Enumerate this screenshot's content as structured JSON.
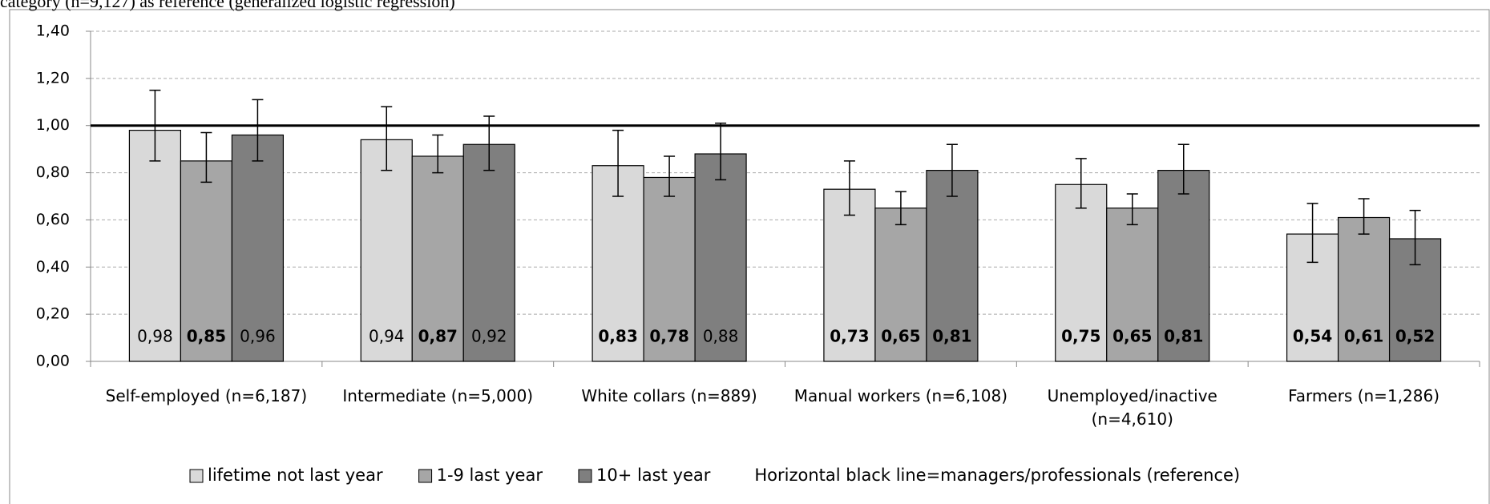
{
  "chart_data": {
    "type": "bar",
    "subtitle": "category (n=9,127) as reference (generalized logistic regression)",
    "categories": [
      "Self-employed (n=6,187)",
      "Intermediate (n=5,000)",
      "White collars (n=889)",
      "Manual workers (n=6,108)",
      "Unemployed/inactive (n=4,610)",
      "Farmers (n=1,286)"
    ],
    "series": [
      {
        "name": "lifetime not last year",
        "color": "#d9d9d9",
        "values": [
          0.98,
          0.94,
          0.83,
          0.73,
          0.75,
          0.54
        ],
        "value_labels": [
          "0,98",
          "0,94",
          "0,83",
          "0,73",
          "0,75",
          "0,54"
        ],
        "label_bold": [
          false,
          false,
          true,
          true,
          true,
          true
        ],
        "lower": [
          0.85,
          0.81,
          0.7,
          0.62,
          0.65,
          0.42
        ],
        "upper": [
          1.15,
          1.08,
          0.98,
          0.85,
          0.86,
          0.67
        ]
      },
      {
        "name": "1-9 last year",
        "color": "#a6a6a6",
        "values": [
          0.85,
          0.87,
          0.78,
          0.65,
          0.65,
          0.61
        ],
        "value_labels": [
          "0,85",
          "0,87",
          "0,78",
          "0,65",
          "0,65",
          "0,61"
        ],
        "label_bold": [
          true,
          true,
          true,
          true,
          true,
          true
        ],
        "lower": [
          0.76,
          0.8,
          0.7,
          0.58,
          0.58,
          0.54
        ],
        "upper": [
          0.97,
          0.96,
          0.87,
          0.72,
          0.71,
          0.69
        ]
      },
      {
        "name": "10+ last year",
        "color": "#7f7f7f",
        "values": [
          0.96,
          0.92,
          0.88,
          0.81,
          0.81,
          0.52
        ],
        "value_labels": [
          "0,96",
          "0,92",
          "0,88",
          "0,81",
          "0,81",
          "0,52"
        ],
        "label_bold": [
          false,
          false,
          false,
          true,
          true,
          true
        ],
        "lower": [
          0.85,
          0.81,
          0.77,
          0.7,
          0.71,
          0.41
        ],
        "upper": [
          1.11,
          1.04,
          1.01,
          0.92,
          0.92,
          0.64
        ]
      }
    ],
    "ylim": [
      0,
      1.4
    ],
    "yticks": [
      {
        "value": 0,
        "label": "0,00"
      },
      {
        "value": 0.2,
        "label": "0,20"
      },
      {
        "value": 0.4,
        "label": "0,40"
      },
      {
        "value": 0.6,
        "label": "0,60"
      },
      {
        "value": 0.8,
        "label": "0,80"
      },
      {
        "value": 1,
        "label": "1,00"
      },
      {
        "value": 1.2,
        "label": "1,20"
      },
      {
        "value": 1.4,
        "label": "1,40"
      }
    ],
    "grid": true,
    "reference_line": 1,
    "annotation": "Horizontal black line=managers/professionals (reference)",
    "legend": "bottom"
  }
}
